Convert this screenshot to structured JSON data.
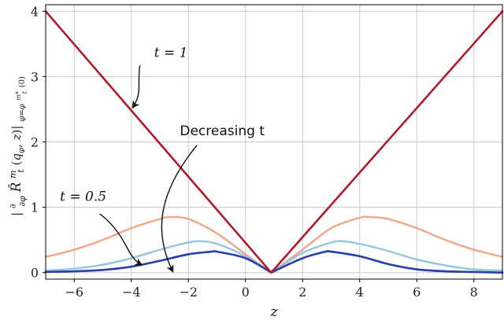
{
  "chart_data": {
    "type": "line",
    "xlabel": "z",
    "ylabel": "|∂/∂φ R̂ₜᵐ(q_φ, z)| at φ = φₜᵐ*(0)",
    "xlim": [
      -7,
      9
    ],
    "ylim": [
      -0.1,
      4.1
    ],
    "xticks": [
      "−6",
      "−4",
      "−2",
      "0",
      "2",
      "4",
      "6",
      "8"
    ],
    "xtick_values": [
      -6,
      -4,
      -2,
      0,
      2,
      4,
      6,
      8
    ],
    "yticks": [
      "0",
      "1",
      "2",
      "3",
      "4"
    ],
    "ytick_values": [
      0,
      1,
      2,
      3,
      4
    ],
    "grid": true,
    "vertex_z": 0.9,
    "series": [
      {
        "name": "t = 1",
        "color": "#b2182b",
        "x": [
          -7,
          0.9,
          9
        ],
        "y": [
          4.0,
          0,
          4.0
        ]
      },
      {
        "color": "#f4a582",
        "x": [
          -7,
          -6,
          -5,
          -4,
          -3,
          -2.65,
          -2,
          -1,
          0,
          0.9,
          2,
          3,
          4,
          4.35,
          5,
          6,
          7,
          8,
          9
        ],
        "y": [
          0.24,
          0.35,
          0.5,
          0.68,
          0.82,
          0.85,
          0.82,
          0.6,
          0.28,
          0,
          0.35,
          0.68,
          0.84,
          0.85,
          0.82,
          0.68,
          0.5,
          0.35,
          0.24
        ]
      },
      {
        "color": "#92c5de",
        "x": [
          -7,
          -6,
          -5,
          -4,
          -3,
          -2,
          -1.6,
          -1,
          0,
          0.9,
          2,
          3,
          3.4,
          4,
          5,
          6,
          7,
          8,
          9
        ],
        "y": [
          0.03,
          0.06,
          0.12,
          0.22,
          0.35,
          0.46,
          0.48,
          0.44,
          0.25,
          0,
          0.3,
          0.46,
          0.48,
          0.44,
          0.33,
          0.2,
          0.11,
          0.05,
          0.03
        ]
      },
      {
        "color": "#4393c3",
        "x": [
          -7,
          -6,
          -5,
          -4,
          -3,
          -2,
          -1.2,
          -1,
          0,
          0.9,
          2,
          2.8,
          3,
          4,
          5,
          6,
          7,
          8,
          9
        ],
        "y": [
          0.01,
          0.02,
          0.04,
          0.09,
          0.18,
          0.28,
          0.32,
          0.32,
          0.22,
          0,
          0.22,
          0.32,
          0.32,
          0.25,
          0.13,
          0.05,
          0.02,
          0.01,
          0.0
        ]
      },
      {
        "name": "t = 0.5",
        "color": "#2c3fa8",
        "x": [
          -7,
          -6,
          -5,
          -4,
          -3,
          -2,
          -1.2,
          -1,
          0,
          0.9,
          2,
          2.8,
          3,
          4,
          5,
          6,
          7,
          8,
          9
        ],
        "y": [
          0.01,
          0.02,
          0.04,
          0.09,
          0.18,
          0.28,
          0.32,
          0.32,
          0.22,
          0,
          0.22,
          0.32,
          0.32,
          0.25,
          0.13,
          0.05,
          0.02,
          0.01,
          0.0
        ]
      }
    ],
    "annotations": [
      {
        "text": "t = 1",
        "text_z": -3.2,
        "text_y": 3.3,
        "arrow_to_z": -4.0,
        "arrow_to_y": 2.5
      },
      {
        "text": "Decreasing t",
        "text_z": -2.3,
        "text_y": 2.1,
        "arrow_to_z": -2.6,
        "arrow_to_y": 0.0
      },
      {
        "text": "t = 0.5",
        "text_z": -6.5,
        "text_y": 1.1,
        "arrow_to_z": -3.6,
        "arrow_to_y": 0.1
      }
    ]
  }
}
